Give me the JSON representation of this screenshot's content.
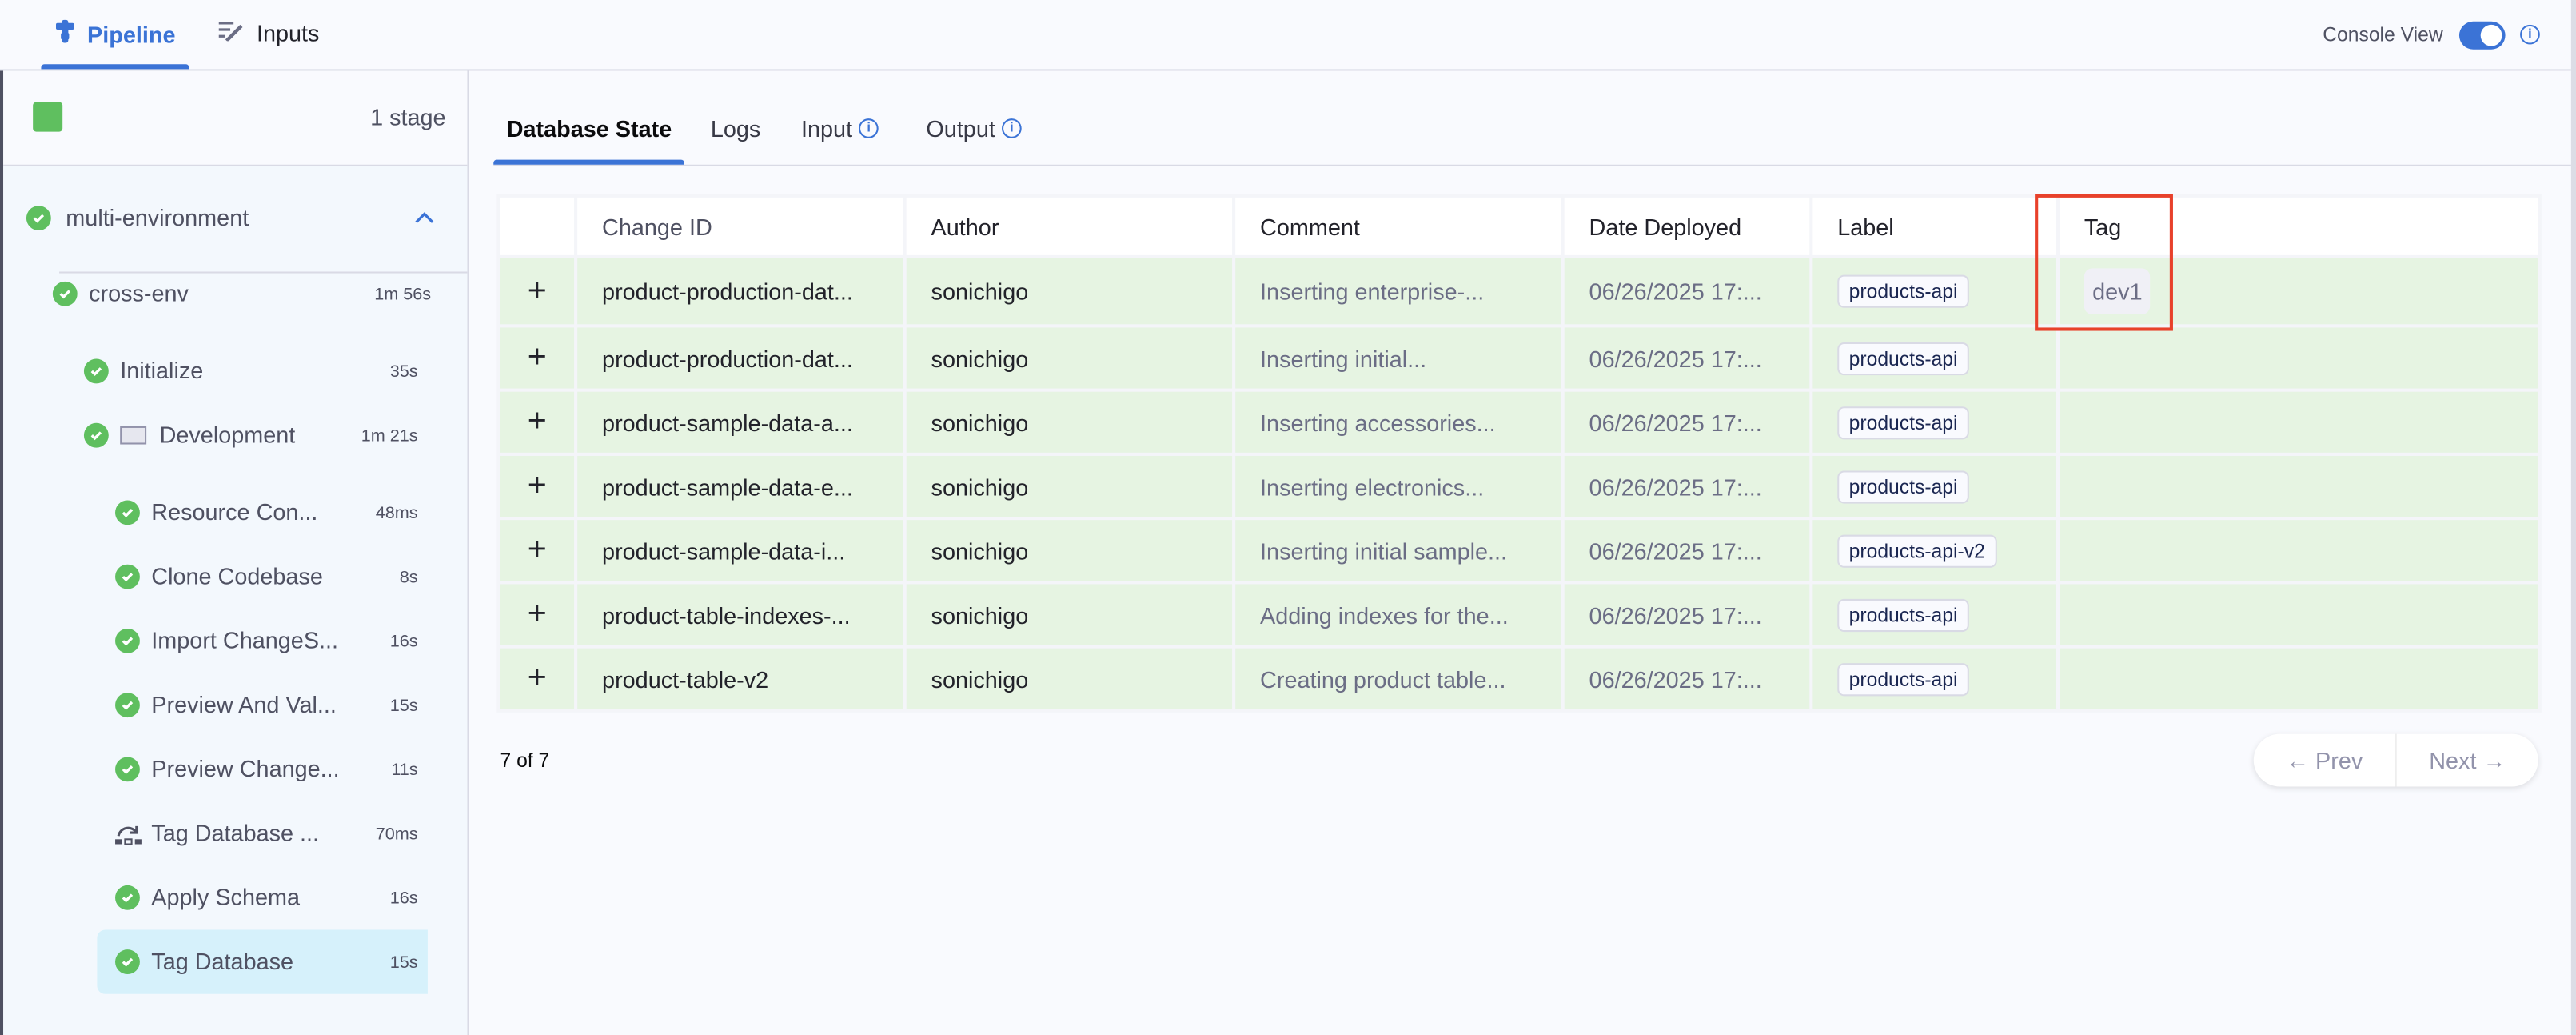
{
  "header": {
    "tabs": [
      {
        "label": "Pipeline",
        "icon": "pipeline-icon",
        "active": true
      },
      {
        "label": "Inputs",
        "icon": "inputs-icon",
        "active": false
      }
    ],
    "console_view_label": "Console View",
    "console_view_on": true
  },
  "sidebar": {
    "stage_count": "1 stage",
    "stage_name": "multi-environment",
    "items": [
      {
        "label": "cross-env",
        "time": "1m 56s",
        "status": "success"
      },
      {
        "label": "Initialize",
        "time": "35s",
        "status": "success"
      },
      {
        "label": "Development",
        "time": "1m 21s",
        "status": "success"
      },
      {
        "label": "Resource Con...",
        "time": "48ms",
        "status": "success"
      },
      {
        "label": "Clone Codebase",
        "time": "8s",
        "status": "success"
      },
      {
        "label": "Import ChangeS...",
        "time": "16s",
        "status": "success"
      },
      {
        "label": "Preview And Val...",
        "time": "15s",
        "status": "success"
      },
      {
        "label": "Preview Change...",
        "time": "11s",
        "status": "success"
      },
      {
        "label": "Tag Database ...",
        "time": "70ms",
        "status": "skipped"
      },
      {
        "label": "Apply Schema",
        "time": "16s",
        "status": "success"
      },
      {
        "label": "Tag Database",
        "time": "15s",
        "status": "success",
        "selected": true
      }
    ]
  },
  "main": {
    "tabs": [
      {
        "label": "Database State",
        "active": true
      },
      {
        "label": "Logs"
      },
      {
        "label": "Input",
        "info": true
      },
      {
        "label": "Output",
        "info": true
      }
    ],
    "table": {
      "columns": [
        "Change ID",
        "Author",
        "Comment",
        "Date Deployed",
        "Label",
        "Tag"
      ],
      "rows": [
        {
          "change_id": "product-production-dat...",
          "author": "sonichigo",
          "comment": "Inserting enterprise-...",
          "date": "06/26/2025 17:...",
          "label": "products-api",
          "tag": "dev1"
        },
        {
          "change_id": "product-production-dat...",
          "author": "sonichigo",
          "comment": "Inserting initial...",
          "date": "06/26/2025 17:...",
          "label": "products-api",
          "tag": ""
        },
        {
          "change_id": "product-sample-data-a...",
          "author": "sonichigo",
          "comment": "Inserting accessories...",
          "date": "06/26/2025 17:...",
          "label": "products-api",
          "tag": ""
        },
        {
          "change_id": "product-sample-data-e...",
          "author": "sonichigo",
          "comment": "Inserting electronics...",
          "date": "06/26/2025 17:...",
          "label": "products-api",
          "tag": ""
        },
        {
          "change_id": "product-sample-data-i...",
          "author": "sonichigo",
          "comment": "Inserting initial sample...",
          "date": "06/26/2025 17:...",
          "label": "products-api-v2",
          "tag": ""
        },
        {
          "change_id": "product-table-indexes-...",
          "author": "sonichigo",
          "comment": "Adding indexes for the...",
          "date": "06/26/2025 17:...",
          "label": "products-api",
          "tag": ""
        },
        {
          "change_id": "product-table-v2",
          "author": "sonichigo",
          "comment": "Creating product table...",
          "date": "06/26/2025 17:...",
          "label": "products-api",
          "tag": ""
        }
      ]
    },
    "count": "7 of 7",
    "pager": {
      "prev": "← Prev",
      "next": "Next →"
    }
  },
  "colors": {
    "accent": "#3b73d6",
    "success": "#5fbf5f",
    "row_bg": "#e6f4e2",
    "highlight": "#e8412b"
  }
}
